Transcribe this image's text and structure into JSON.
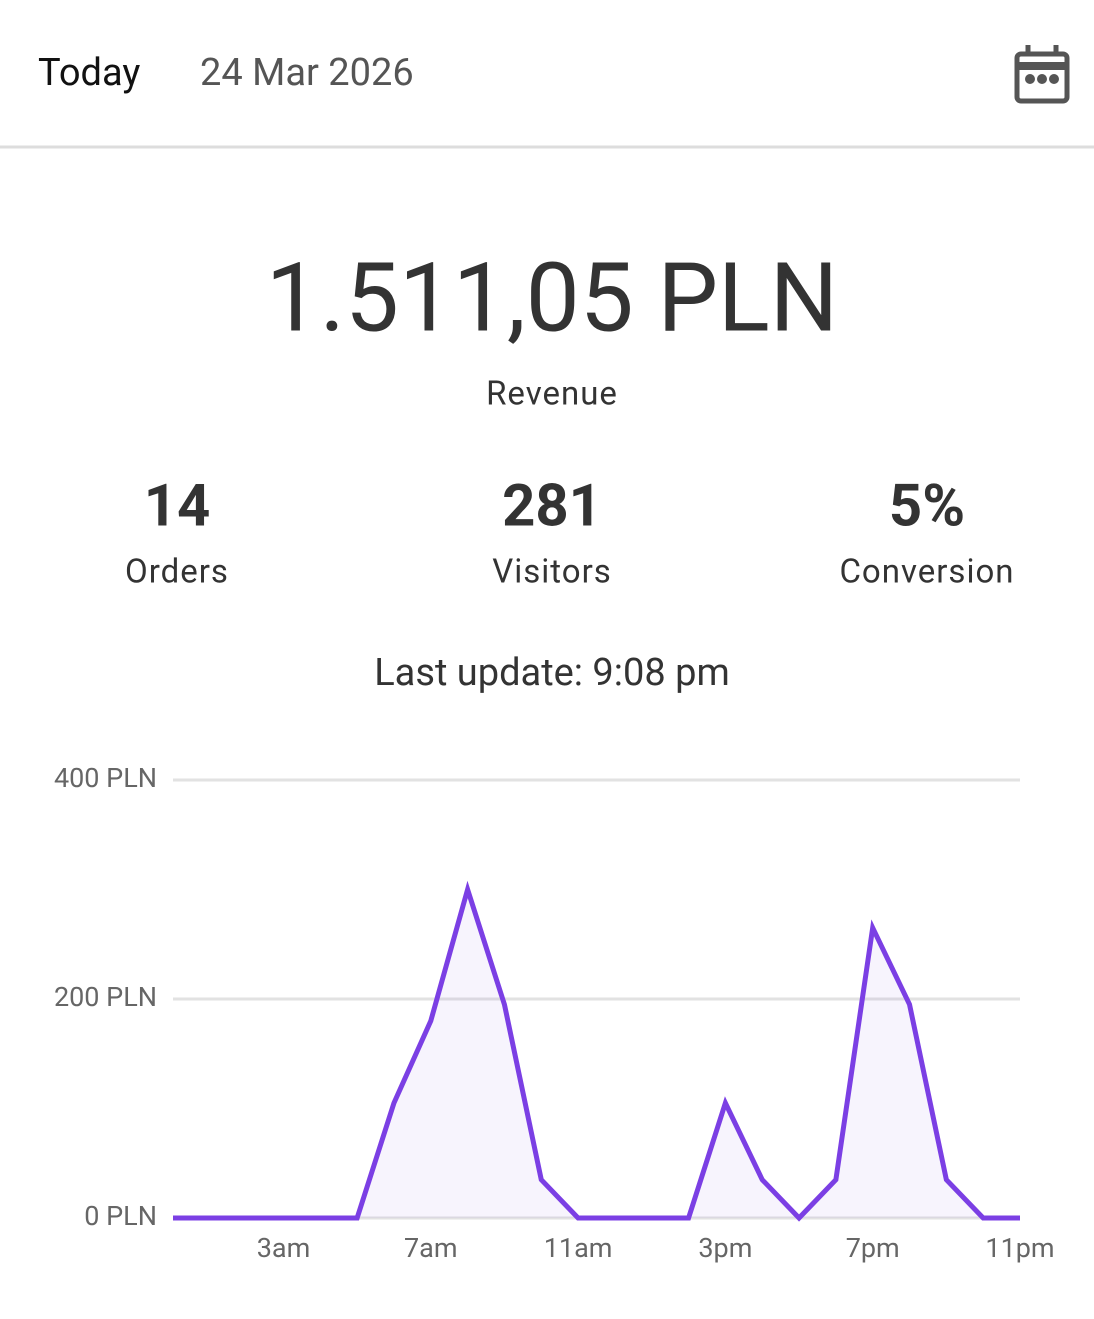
{
  "header": {
    "title": "Today",
    "date": "24 Mar 2026"
  },
  "revenue": {
    "value": "1.511,05 PLN",
    "label": "Revenue"
  },
  "stats": [
    {
      "value": "14",
      "label": "Orders"
    },
    {
      "value": "281",
      "label": "Visitors"
    },
    {
      "value": "5%",
      "label": "Conversion"
    }
  ],
  "last_update": "Last update: 9:08 pm",
  "chart_data": {
    "type": "area",
    "color": "#7b3fe4",
    "x": [
      0,
      1,
      2,
      3,
      4,
      5,
      6,
      7,
      8,
      9,
      10,
      11,
      12,
      13,
      14,
      15,
      16,
      17,
      18,
      19,
      20,
      21,
      22,
      23
    ],
    "values": [
      0,
      0,
      0,
      0,
      0,
      0,
      105,
      180,
      300,
      195,
      35,
      0,
      0,
      0,
      0,
      105,
      35,
      0,
      35,
      265,
      195,
      35,
      0,
      0
    ],
    "xlim": [
      0,
      23
    ],
    "xticks": [
      {
        "value": 3,
        "label": "3am"
      },
      {
        "value": 7,
        "label": "7am"
      },
      {
        "value": 11,
        "label": "11am"
      },
      {
        "value": 15,
        "label": "3pm"
      },
      {
        "value": 19,
        "label": "7pm"
      },
      {
        "value": 23,
        "label": "11pm"
      }
    ],
    "ylim": [
      0,
      400
    ],
    "yticks": [
      {
        "value": 0,
        "label": "0 PLN"
      },
      {
        "value": 200,
        "label": "200 PLN"
      },
      {
        "value": 400,
        "label": "400 PLN"
      }
    ],
    "grid": true
  }
}
